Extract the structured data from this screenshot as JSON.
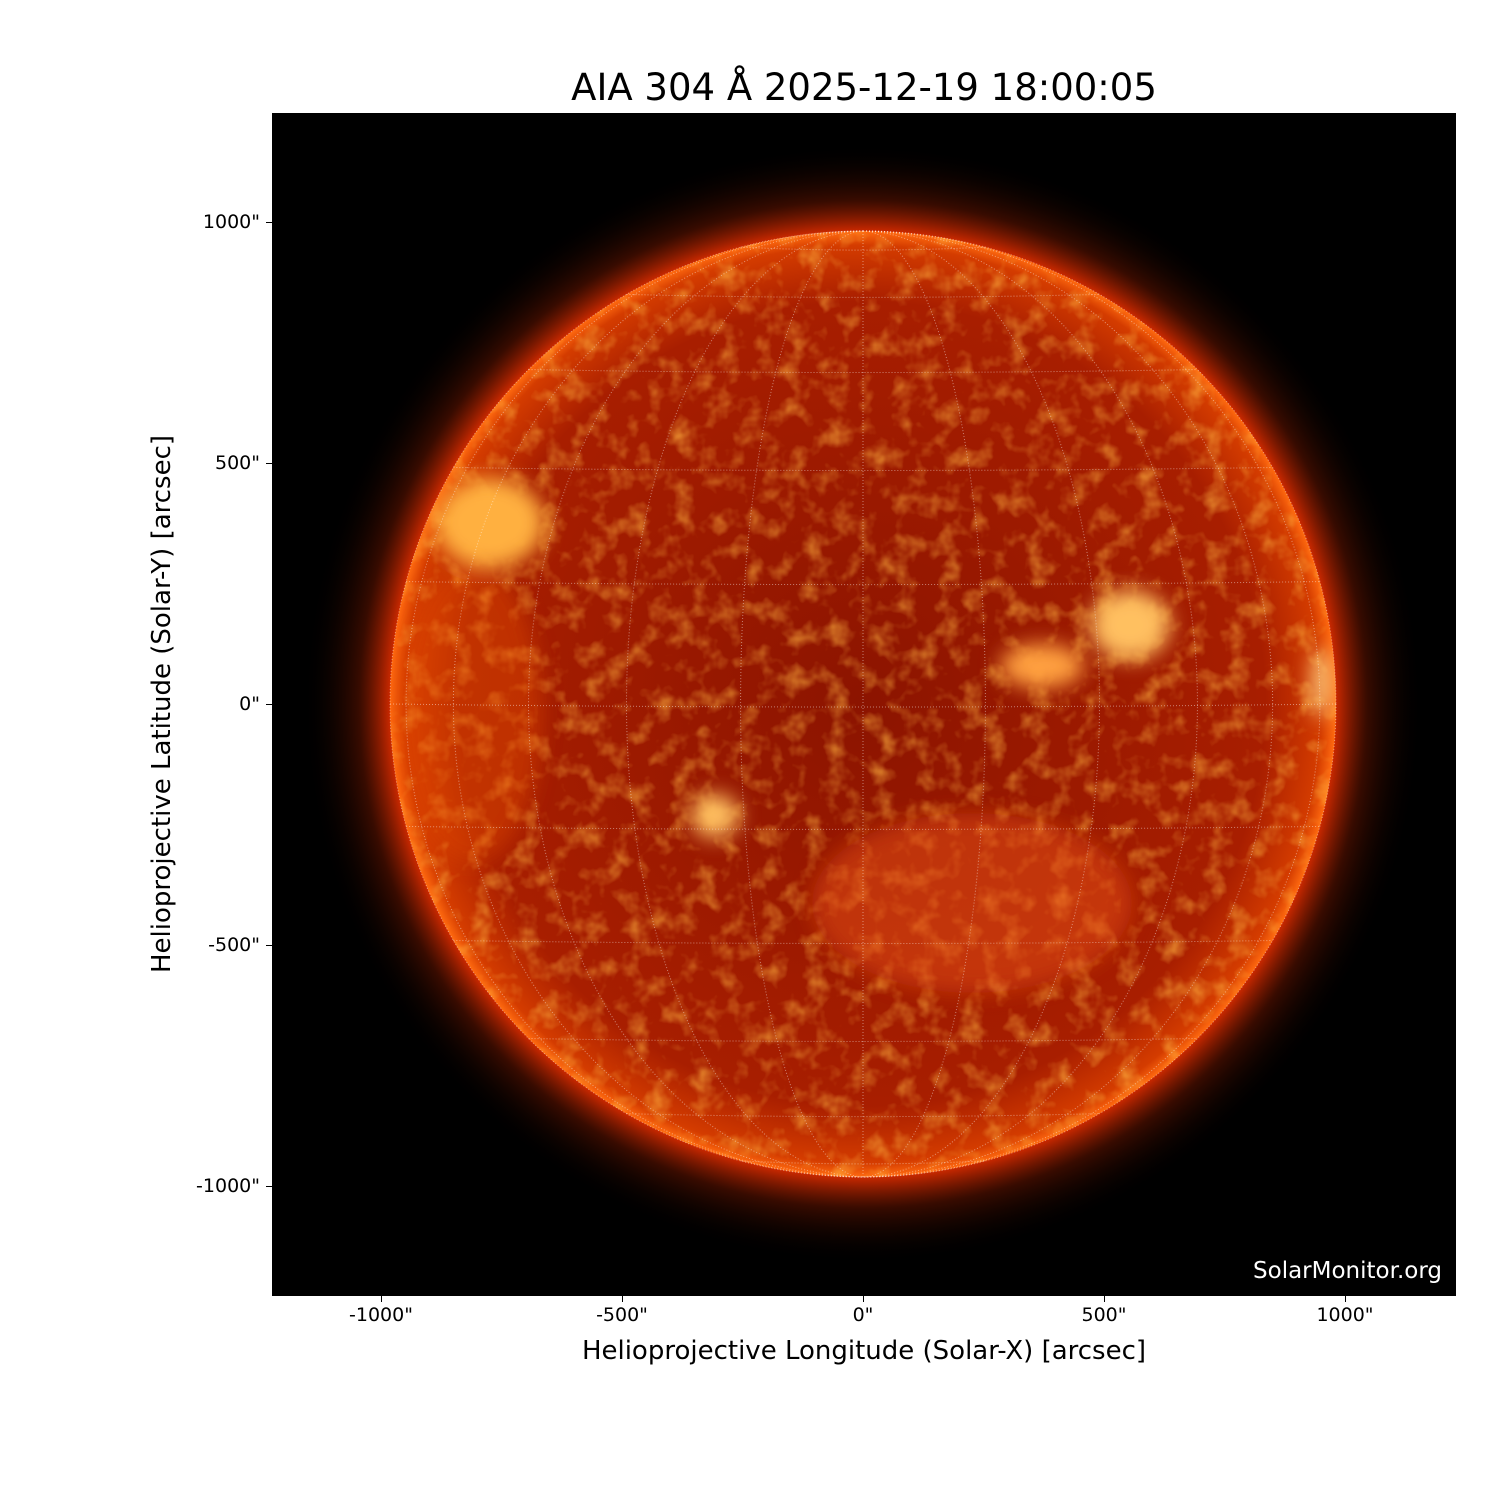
{
  "title": "AIA 304 Å 2025-12-19 18:00:05",
  "x_axis": {
    "label": "Helioprojective Longitude (Solar-X) [arcsec]",
    "ticks": [
      -1000,
      -500,
      0,
      500,
      1000
    ],
    "tick_labels": [
      "-1000\"",
      "-500\"",
      "0\"",
      "500\"",
      "1000\""
    ],
    "range": [
      -1228,
      1228
    ]
  },
  "y_axis": {
    "label": "Helioprojective Latitude (Solar-Y) [arcsec]",
    "ticks": [
      1000,
      500,
      0,
      -500,
      -1000
    ],
    "tick_labels": [
      "1000\"",
      "500\"",
      "0\"",
      "-500\"",
      "-1000\""
    ],
    "range": [
      -1228,
      1228
    ]
  },
  "watermark": "SolarMonitor.org",
  "image": {
    "subject": "solar disk",
    "colormap": "sdoaia304",
    "grid_spacing_deg": 15,
    "colors": {
      "disk": "#a01800",
      "limb": "#ff6a00",
      "bright": "#ffd070",
      "background": "#000000"
    }
  }
}
